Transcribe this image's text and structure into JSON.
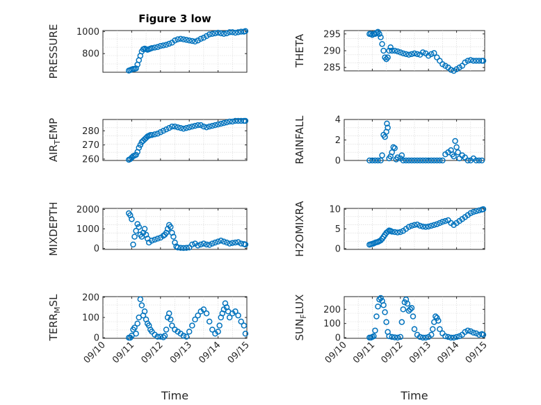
{
  "figure": {
    "title": "Figure 3 low"
  },
  "chart_data": [
    {
      "type": "scatter",
      "ylabel": "PRESSURE",
      "title": "Figure 3 low",
      "ylim": [
        630,
        1010
      ],
      "yticks": [
        800,
        1000
      ],
      "xlim": [
        0,
        5
      ],
      "xlabel": "",
      "xtick_labels": false,
      "x": [
        0.9,
        0.95,
        1.0,
        1.05,
        1.1,
        1.15,
        1.2,
        1.25,
        1.3,
        1.35,
        1.4,
        1.45,
        1.5,
        1.55,
        1.6,
        1.65,
        1.7,
        1.8,
        1.9,
        2.0,
        2.1,
        2.2,
        2.3,
        2.4,
        2.5,
        2.6,
        2.7,
        2.8,
        2.9,
        3.0,
        3.1,
        3.2,
        3.3,
        3.4,
        3.5,
        3.6,
        3.7,
        3.8,
        3.9,
        4.0,
        4.1,
        4.2,
        4.3,
        4.4,
        4.5,
        4.6,
        4.7,
        4.8,
        4.9,
        4.95
      ],
      "y": [
        645,
        650,
        655,
        660,
        660,
        665,
        700,
        740,
        780,
        820,
        840,
        845,
        840,
        835,
        840,
        845,
        850,
        855,
        860,
        870,
        875,
        880,
        890,
        900,
        920,
        930,
        935,
        930,
        925,
        920,
        915,
        910,
        920,
        935,
        945,
        960,
        975,
        980,
        985,
        990,
        985,
        980,
        985,
        995,
        995,
        990,
        995,
        1000,
        1000,
        1005
      ]
    },
    {
      "type": "scatter",
      "ylabel": "THETA",
      "ylim": [
        284,
        296
      ],
      "yticks": [
        285,
        290,
        295
      ],
      "xlim": [
        0,
        5
      ],
      "xlabel": "",
      "xtick_labels": false,
      "x": [
        0.9,
        0.95,
        1.0,
        1.05,
        1.1,
        1.15,
        1.2,
        1.25,
        1.3,
        1.35,
        1.4,
        1.45,
        1.5,
        1.55,
        1.6,
        1.65,
        1.7,
        1.8,
        1.9,
        2.0,
        2.1,
        2.2,
        2.3,
        2.4,
        2.5,
        2.6,
        2.7,
        2.8,
        2.9,
        3.0,
        3.1,
        3.2,
        3.3,
        3.4,
        3.5,
        3.6,
        3.7,
        3.8,
        3.9,
        4.0,
        4.1,
        4.2,
        4.3,
        4.4,
        4.5,
        4.6,
        4.7,
        4.8,
        4.9,
        4.95
      ],
      "y": [
        295,
        295,
        294.7,
        295,
        295,
        295.3,
        295.6,
        295,
        294,
        292,
        290,
        288,
        287.5,
        288,
        290,
        291,
        290,
        290,
        289.8,
        289.5,
        289.2,
        289,
        288.8,
        289,
        289.2,
        289,
        288.8,
        289.5,
        289.2,
        288.5,
        289,
        289.3,
        288,
        287,
        286,
        285.5,
        285,
        284.3,
        284,
        284.5,
        285,
        285.5,
        286.5,
        287,
        287.2,
        287,
        287,
        287,
        287,
        287
      ]
    },
    {
      "type": "scatter",
      "ylabel": "AIR_TEMP",
      "ylabel_display": [
        "AIR",
        "T",
        "EMP"
      ],
      "ylim": [
        259,
        288
      ],
      "yticks": [
        260,
        270,
        280
      ],
      "xlim": [
        0,
        5
      ],
      "xlabel": "",
      "xtick_labels": false,
      "x": [
        0.9,
        0.95,
        1.0,
        1.05,
        1.1,
        1.15,
        1.2,
        1.25,
        1.3,
        1.35,
        1.4,
        1.45,
        1.5,
        1.55,
        1.6,
        1.65,
        1.7,
        1.8,
        1.9,
        2.0,
        2.1,
        2.2,
        2.3,
        2.4,
        2.5,
        2.6,
        2.7,
        2.8,
        2.9,
        3.0,
        3.1,
        3.2,
        3.3,
        3.4,
        3.5,
        3.6,
        3.7,
        3.8,
        3.9,
        4.0,
        4.1,
        4.2,
        4.3,
        4.4,
        4.5,
        4.6,
        4.7,
        4.8,
        4.9,
        4.95
      ],
      "y": [
        259.5,
        260,
        261,
        262,
        262.5,
        263,
        265,
        268,
        270,
        272,
        273,
        274,
        275,
        276,
        276.5,
        277,
        277,
        277.5,
        278,
        279,
        280,
        281,
        282,
        283,
        283,
        282.5,
        282,
        281.5,
        282,
        282.5,
        283,
        283.5,
        284,
        284,
        283,
        282.5,
        283,
        283.5,
        284,
        284.5,
        285,
        285.5,
        286,
        286.5,
        286.5,
        287,
        287,
        287,
        287,
        287
      ]
    },
    {
      "type": "scatter",
      "ylabel": "RAINFALL",
      "ylim": [
        0,
        4
      ],
      "yticks": [
        0,
        2,
        4
      ],
      "xlim": [
        0,
        5
      ],
      "xlabel": "",
      "xtick_labels": false,
      "x": [
        0.9,
        1.0,
        1.1,
        1.2,
        1.3,
        1.35,
        1.4,
        1.45,
        1.5,
        1.52,
        1.55,
        1.6,
        1.65,
        1.7,
        1.75,
        1.8,
        1.85,
        1.9,
        2.0,
        2.05,
        2.1,
        2.2,
        2.3,
        2.4,
        2.5,
        2.6,
        2.7,
        2.8,
        2.9,
        3.0,
        3.1,
        3.2,
        3.3,
        3.4,
        3.5,
        3.6,
        3.7,
        3.8,
        3.85,
        3.9,
        3.95,
        4.0,
        4.05,
        4.1,
        4.2,
        4.3,
        4.4,
        4.5,
        4.6,
        4.7,
        4.8,
        4.9
      ],
      "y": [
        0,
        0,
        0,
        0,
        0,
        0.5,
        2.5,
        2.3,
        2.8,
        3.6,
        3.2,
        0.2,
        0.4,
        0.8,
        1.3,
        1.2,
        0.1,
        0.3,
        0.2,
        0.5,
        0,
        0,
        0,
        0,
        0,
        0,
        0,
        0,
        0,
        0,
        0,
        0,
        0,
        0,
        0,
        0.6,
        0.8,
        1.0,
        0.6,
        0.4,
        1.9,
        1.3,
        0.8,
        0.2,
        0.5,
        0.3,
        0,
        0,
        0.2,
        0,
        0,
        0
      ]
    },
    {
      "type": "scatter",
      "ylabel": "MIXDEPTH",
      "ylim": [
        -50,
        2050
      ],
      "yticks": [
        0,
        1000,
        2000
      ],
      "xlim": [
        0,
        5
      ],
      "xlabel": "",
      "xtick_labels": false,
      "x": [
        0.9,
        0.95,
        1.0,
        1.05,
        1.1,
        1.15,
        1.2,
        1.25,
        1.3,
        1.35,
        1.4,
        1.45,
        1.5,
        1.55,
        1.6,
        1.7,
        1.8,
        1.9,
        2.0,
        2.1,
        2.15,
        2.2,
        2.25,
        2.3,
        2.35,
        2.4,
        2.45,
        2.5,
        2.55,
        2.6,
        2.7,
        2.8,
        2.9,
        3.0,
        3.1,
        3.2,
        3.3,
        3.4,
        3.5,
        3.6,
        3.7,
        3.8,
        3.9,
        4.0,
        4.1,
        4.2,
        4.3,
        4.4,
        4.5,
        4.6,
        4.7,
        4.8,
        4.9,
        4.95
      ],
      "y": [
        1800,
        1700,
        1500,
        200,
        600,
        900,
        1250,
        1100,
        700,
        600,
        800,
        1000,
        700,
        500,
        300,
        400,
        450,
        500,
        550,
        650,
        700,
        800,
        1000,
        1200,
        1100,
        800,
        600,
        300,
        100,
        50,
        30,
        20,
        30,
        50,
        200,
        250,
        150,
        200,
        250,
        200,
        180,
        250,
        300,
        350,
        400,
        350,
        300,
        250,
        280,
        300,
        320,
        250,
        220,
        200
      ]
    },
    {
      "type": "scatter",
      "ylabel": "H2OMIXRA",
      "ylim": [
        -0.2,
        10.2
      ],
      "yticks": [
        0,
        5,
        10
      ],
      "xlim": [
        0,
        5
      ],
      "xlabel": "",
      "xtick_labels": false,
      "x": [
        0.9,
        0.95,
        1.0,
        1.05,
        1.1,
        1.15,
        1.2,
        1.25,
        1.3,
        1.35,
        1.4,
        1.45,
        1.5,
        1.55,
        1.6,
        1.65,
        1.7,
        1.8,
        1.9,
        2.0,
        2.1,
        2.2,
        2.3,
        2.4,
        2.5,
        2.6,
        2.7,
        2.8,
        2.9,
        3.0,
        3.1,
        3.2,
        3.3,
        3.4,
        3.5,
        3.6,
        3.7,
        3.8,
        3.9,
        4.0,
        4.1,
        4.2,
        4.3,
        4.4,
        4.5,
        4.6,
        4.7,
        4.8,
        4.9,
        4.95
      ],
      "y": [
        1,
        1.1,
        1.2,
        1.3,
        1.5,
        1.6,
        1.7,
        1.9,
        2.1,
        2.5,
        3,
        3.5,
        4,
        4.3,
        4.6,
        4.5,
        4.3,
        4.2,
        4.1,
        4.2,
        4.5,
        5,
        5.5,
        5.8,
        6,
        6.1,
        5.8,
        5.6,
        5.5,
        5.6,
        5.8,
        6,
        6.2,
        6.5,
        6.8,
        7,
        7.2,
        6.5,
        6,
        6.5,
        7,
        7.5,
        8,
        8.5,
        9,
        9.3,
        9.5,
        9.7,
        9.9,
        10
      ]
    },
    {
      "type": "scatter",
      "ylabel": "TERR_MSL",
      "ylabel_display": [
        "TERR",
        "M",
        "SL"
      ],
      "ylim": [
        -3,
        203
      ],
      "yticks": [
        0,
        100,
        200
      ],
      "xlim": [
        0,
        5
      ],
      "xlabel": "Time",
      "xtick_labels": [
        "09/10",
        "09/11",
        "09/12",
        "09/13",
        "09/14",
        "09/15"
      ],
      "x": [
        0.9,
        0.95,
        1.0,
        1.05,
        1.1,
        1.15,
        1.2,
        1.25,
        1.3,
        1.35,
        1.4,
        1.45,
        1.5,
        1.55,
        1.6,
        1.65,
        1.7,
        1.8,
        1.9,
        2.0,
        2.1,
        2.15,
        2.2,
        2.25,
        2.3,
        2.35,
        2.4,
        2.5,
        2.6,
        2.7,
        2.8,
        2.9,
        3.0,
        3.1,
        3.2,
        3.3,
        3.4,
        3.5,
        3.6,
        3.7,
        3.8,
        3.9,
        4.0,
        4.05,
        4.1,
        4.15,
        4.2,
        4.25,
        4.3,
        4.35,
        4.4,
        4.5,
        4.6,
        4.7,
        4.8,
        4.9,
        4.95
      ],
      "y": [
        0,
        0,
        10,
        40,
        50,
        20,
        70,
        100,
        190,
        160,
        110,
        130,
        90,
        70,
        60,
        40,
        30,
        15,
        5,
        5,
        2,
        10,
        40,
        100,
        120,
        90,
        60,
        40,
        30,
        20,
        10,
        5,
        30,
        60,
        90,
        110,
        130,
        140,
        120,
        80,
        40,
        20,
        30,
        60,
        100,
        120,
        140,
        170,
        150,
        130,
        100,
        120,
        130,
        110,
        80,
        60,
        20
      ]
    },
    {
      "type": "scatter",
      "ylabel": "SUN_FLUX",
      "ylabel_display": [
        "SUN",
        "F",
        "LUX"
      ],
      "ylim": [
        -5,
        290
      ],
      "yticks": [
        0,
        100,
        200
      ],
      "xlim": [
        0,
        5
      ],
      "xlabel": "Time",
      "xtick_labels": [
        "09/10",
        "09/11",
        "09/12",
        "09/13",
        "09/14",
        "09/15"
      ],
      "x": [
        0.9,
        0.95,
        1.0,
        1.05,
        1.1,
        1.15,
        1.2,
        1.25,
        1.3,
        1.35,
        1.4,
        1.45,
        1.5,
        1.55,
        1.6,
        1.7,
        1.8,
        1.9,
        2.0,
        2.05,
        2.1,
        2.15,
        2.2,
        2.25,
        2.3,
        2.35,
        2.4,
        2.45,
        2.5,
        2.6,
        2.7,
        2.8,
        2.9,
        3.0,
        3.1,
        3.15,
        3.2,
        3.25,
        3.3,
        3.35,
        3.4,
        3.5,
        3.6,
        3.7,
        3.8,
        3.9,
        4.0,
        4.1,
        4.2,
        4.3,
        4.4,
        4.5,
        4.6,
        4.7,
        4.8,
        4.9,
        4.95
      ],
      "y": [
        0,
        0,
        5,
        10,
        50,
        150,
        220,
        270,
        280,
        260,
        230,
        180,
        110,
        40,
        10,
        5,
        2,
        0,
        5,
        110,
        200,
        250,
        270,
        240,
        190,
        200,
        210,
        150,
        60,
        20,
        5,
        0,
        0,
        5,
        20,
        60,
        110,
        150,
        140,
        120,
        60,
        30,
        10,
        5,
        0,
        0,
        5,
        10,
        20,
        40,
        50,
        45,
        35,
        30,
        20,
        25,
        20
      ]
    }
  ]
}
